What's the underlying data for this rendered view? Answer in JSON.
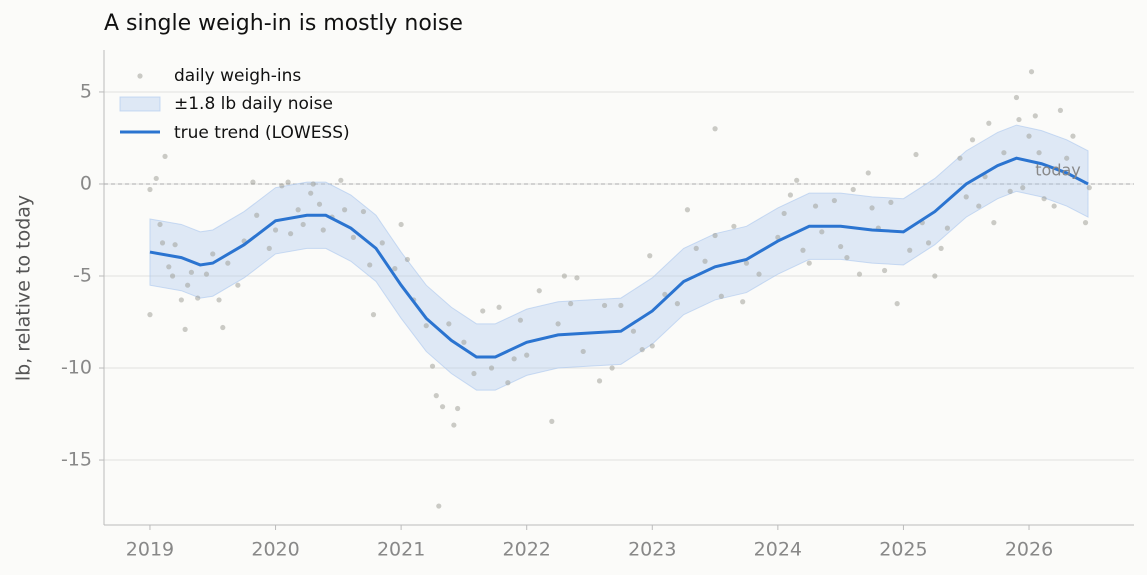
{
  "chart_data": {
    "type": "scatter-trend",
    "title": "A single weigh-in is mostly noise",
    "ylabel": "lb, relative to today",
    "xlim": [
      2018.634,
      2026.836
    ],
    "ylim": [
      -18.53,
      7.28
    ],
    "xticks": [
      2019,
      2020,
      2021,
      2022,
      2023,
      2024,
      2025,
      2026
    ],
    "yticks": [
      5,
      0,
      -5,
      -10,
      -15
    ],
    "grid": true,
    "legend": "upper-left",
    "reference_line": 0,
    "annotations": [
      {
        "text": "today",
        "x": 2026.05,
        "y": 0.7
      }
    ],
    "points": {
      "name": "daily weigh-ins",
      "color": "#9a9a92",
      "x": [
        2019.0,
        2019.0,
        2019.05,
        2019.08,
        2019.1,
        2019.12,
        2019.15,
        2019.18,
        2019.2,
        2019.25,
        2019.28,
        2019.3,
        2019.33,
        2019.38,
        2019.45,
        2019.5,
        2019.55,
        2019.58,
        2019.62,
        2019.7,
        2019.75,
        2019.82,
        2019.85,
        2019.95,
        2020.0,
        2020.05,
        2020.1,
        2020.12,
        2020.18,
        2020.22,
        2020.28,
        2020.3,
        2020.35,
        2020.38,
        2020.45,
        2020.52,
        2020.55,
        2020.62,
        2020.7,
        2020.75,
        2020.78,
        2020.85,
        2020.95,
        2021.0,
        2021.05,
        2021.1,
        2021.2,
        2021.25,
        2021.28,
        2021.3,
        2021.33,
        2021.38,
        2021.42,
        2021.45,
        2021.5,
        2021.58,
        2021.65,
        2021.72,
        2021.78,
        2021.85,
        2021.9,
        2021.95,
        2022.0,
        2022.1,
        2022.2,
        2022.25,
        2022.3,
        2022.35,
        2022.4,
        2022.45,
        2022.58,
        2022.62,
        2022.68,
        2022.75,
        2022.85,
        2022.92,
        2022.98,
        2023.0,
        2023.1,
        2023.2,
        2023.28,
        2023.35,
        2023.42,
        2023.5,
        2023.5,
        2023.55,
        2023.65,
        2023.72,
        2023.75,
        2023.85,
        2024.0,
        2024.05,
        2024.1,
        2024.15,
        2024.2,
        2024.25,
        2024.3,
        2024.35,
        2024.45,
        2024.5,
        2024.55,
        2024.6,
        2024.65,
        2024.72,
        2024.75,
        2024.8,
        2024.85,
        2024.9,
        2024.95,
        2025.05,
        2025.1,
        2025.15,
        2025.2,
        2025.25,
        2025.3,
        2025.35,
        2025.45,
        2025.5,
        2025.55,
        2025.6,
        2025.65,
        2025.68,
        2025.72,
        2025.8,
        2025.85,
        2025.9,
        2025.92,
        2025.95,
        2026.0,
        2026.02,
        2026.05,
        2026.08,
        2026.12,
        2026.2,
        2026.25,
        2026.3,
        2026.35,
        2026.45,
        2026.48
      ],
      "values": [
        -7.1,
        -0.3,
        0.3,
        -2.2,
        -3.2,
        1.5,
        -4.5,
        -5.0,
        -3.3,
        -6.3,
        -7.9,
        -5.5,
        -4.8,
        -6.2,
        -4.9,
        -3.8,
        -6.3,
        -7.8,
        -4.3,
        -5.5,
        -3.1,
        0.1,
        -1.7,
        -3.5,
        -2.5,
        -0.1,
        0.1,
        -2.7,
        -1.4,
        -2.2,
        -0.5,
        0.0,
        -1.1,
        -2.5,
        -1.8,
        0.2,
        -1.4,
        -2.9,
        -1.5,
        -4.4,
        -7.1,
        -3.2,
        -4.6,
        -2.2,
        -4.1,
        -6.3,
        -7.7,
        -9.9,
        -11.5,
        -17.5,
        -12.1,
        -7.6,
        -13.1,
        -12.2,
        -8.6,
        -10.3,
        -6.9,
        -10.0,
        -6.7,
        -10.8,
        -9.5,
        -7.4,
        -9.3,
        -5.8,
        -12.9,
        -7.6,
        -5.0,
        -6.5,
        -5.1,
        -9.1,
        -10.7,
        -6.6,
        -10.0,
        -6.6,
        -8.0,
        -9.0,
        -3.9,
        -8.8,
        -6.0,
        -6.5,
        -1.4,
        -3.5,
        -4.2,
        -2.8,
        3.0,
        -6.1,
        -2.3,
        -6.4,
        -4.3,
        -4.9,
        -2.9,
        -1.6,
        -0.6,
        0.2,
        -3.6,
        -4.3,
        -1.2,
        -2.6,
        -0.9,
        -3.4,
        -4.0,
        -0.3,
        -4.9,
        0.6,
        -1.3,
        -2.4,
        -4.7,
        -1.0,
        -6.5,
        -3.6,
        1.6,
        -2.1,
        -3.2,
        -5.0,
        -3.5,
        -2.4,
        1.4,
        -0.7,
        2.4,
        -1.2,
        0.4,
        3.3,
        -2.1,
        1.7,
        -0.4,
        4.7,
        3.5,
        -0.2,
        2.6,
        6.1,
        3.7,
        1.7,
        -0.8,
        -1.2,
        4.0,
        1.4,
        2.6,
        -2.1,
        -0.2
      ]
    },
    "band": {
      "name": "±1.8 lb daily noise",
      "color": "#aac6ee",
      "x": [
        2019,
        2019.25,
        2019.4,
        2019.5,
        2019.75,
        2020,
        2020.25,
        2020.4,
        2020.6,
        2020.8,
        2021,
        2021.2,
        2021.4,
        2021.6,
        2021.75,
        2022,
        2022.25,
        2022.5,
        2022.75,
        2023,
        2023.25,
        2023.5,
        2023.75,
        2024,
        2024.25,
        2024.5,
        2024.75,
        2025,
        2025.25,
        2025.5,
        2025.75,
        2025.9,
        2026.1,
        2026.3,
        2026.47
      ],
      "upper": [
        -1.9,
        -2.2,
        -2.6,
        -2.5,
        -1.5,
        -0.2,
        0.1,
        0.1,
        -0.6,
        -1.7,
        -3.7,
        -5.5,
        -6.7,
        -7.6,
        -7.6,
        -6.8,
        -6.4,
        -6.3,
        -6.2,
        -5.1,
        -3.5,
        -2.7,
        -2.3,
        -1.3,
        -0.5,
        -0.5,
        -0.7,
        -0.8,
        0.3,
        1.8,
        2.8,
        3.2,
        2.9,
        2.4,
        1.8
      ],
      "lower": [
        -5.5,
        -5.8,
        -6.2,
        -6.1,
        -5.1,
        -3.8,
        -3.5,
        -3.5,
        -4.2,
        -5.3,
        -7.3,
        -9.1,
        -10.3,
        -11.2,
        -11.2,
        -10.4,
        -10.0,
        -9.9,
        -9.8,
        -8.7,
        -7.1,
        -6.3,
        -5.9,
        -4.9,
        -4.1,
        -4.1,
        -4.3,
        -4.4,
        -3.3,
        -1.8,
        -0.8,
        -0.4,
        -0.7,
        -1.2,
        -1.8
      ]
    },
    "trend": {
      "name": "true trend (LOWESS)",
      "color": "#2b74d0",
      "x": [
        2019,
        2019.25,
        2019.4,
        2019.5,
        2019.75,
        2020,
        2020.25,
        2020.4,
        2020.6,
        2020.8,
        2021,
        2021.2,
        2021.4,
        2021.6,
        2021.75,
        2022,
        2022.25,
        2022.5,
        2022.75,
        2023,
        2023.25,
        2023.5,
        2023.75,
        2024,
        2024.25,
        2024.5,
        2024.75,
        2025,
        2025.25,
        2025.5,
        2025.75,
        2025.9,
        2026.1,
        2026.3,
        2026.47
      ],
      "values": [
        -3.7,
        -4.0,
        -4.4,
        -4.3,
        -3.3,
        -2.0,
        -1.7,
        -1.7,
        -2.4,
        -3.5,
        -5.5,
        -7.3,
        -8.5,
        -9.4,
        -9.4,
        -8.6,
        -8.2,
        -8.1,
        -8.0,
        -6.9,
        -5.3,
        -4.5,
        -4.1,
        -3.1,
        -2.3,
        -2.3,
        -2.5,
        -2.6,
        -1.5,
        0.0,
        1.0,
        1.4,
        1.1,
        0.6,
        0.0
      ]
    }
  }
}
